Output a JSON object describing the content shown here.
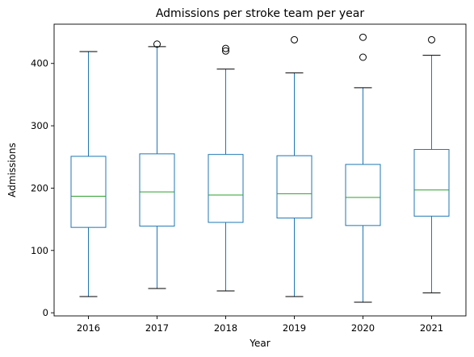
{
  "chart_data": {
    "type": "box",
    "title": "Admissions per stroke team per year",
    "xlabel": "Year",
    "ylabel": "Admissions",
    "ylim": [
      -5,
      463
    ],
    "yticks": [
      0,
      100,
      200,
      300,
      400
    ],
    "categories": [
      "2016",
      "2017",
      "2018",
      "2019",
      "2020",
      "2021"
    ],
    "boxes": [
      {
        "whisker_low": 26,
        "q1": 137,
        "median": 187,
        "q3": 251,
        "whisker_high": 419,
        "outliers": []
      },
      {
        "whisker_low": 39,
        "q1": 139,
        "median": 194,
        "q3": 255,
        "whisker_high": 427,
        "outliers": [
          431
        ]
      },
      {
        "whisker_low": 35,
        "q1": 145,
        "median": 189,
        "q3": 254,
        "whisker_high": 391,
        "outliers": [
          420,
          424
        ]
      },
      {
        "whisker_low": 26,
        "q1": 152,
        "median": 191,
        "q3": 252,
        "whisker_high": 385,
        "outliers": [
          438
        ]
      },
      {
        "whisker_low": 17,
        "q1": 140,
        "median": 185,
        "q3": 238,
        "whisker_high": 361,
        "outliers": [
          410,
          442
        ]
      },
      {
        "whisker_low": 32,
        "q1": 155,
        "median": 197,
        "q3": 262,
        "whisker_high": 413,
        "outliers": [
          438
        ]
      }
    ],
    "grid": false,
    "colors": {
      "box": "#1f77b4",
      "median": "#2ca02c",
      "whisker": "#1f77b4",
      "cap": "#000000",
      "outlier": "#000000"
    }
  }
}
